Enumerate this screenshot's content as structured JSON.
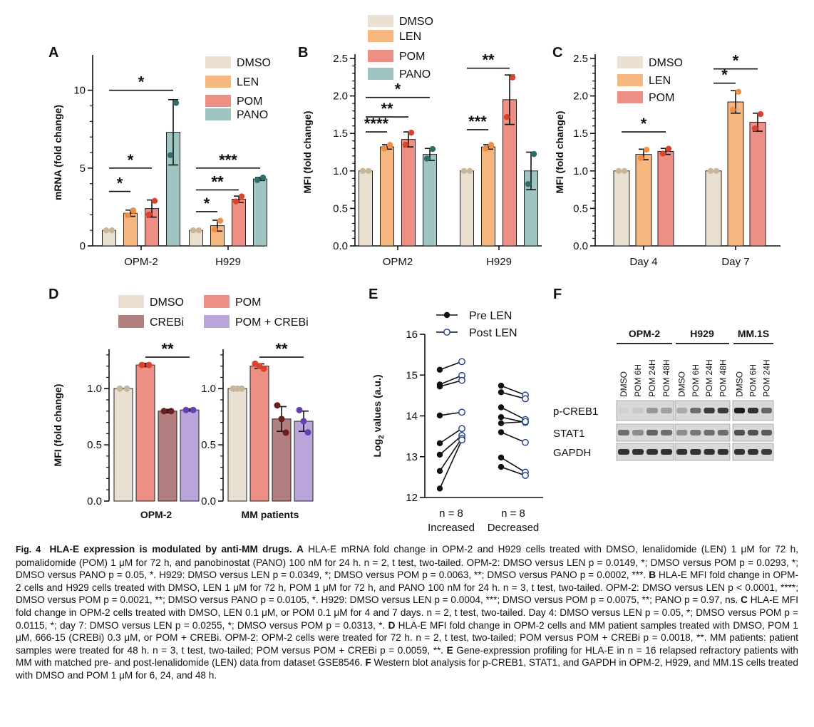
{
  "colors": {
    "DMSO": "#e9e0d2",
    "LEN": "#f5b680",
    "POM": "#ed8f85",
    "PANO": "#9fc5c3",
    "CREBi": "#b17f80",
    "POM + CREBi": "#b9a5d9",
    "dot_DMSO": "#c8b59a",
    "dot_LEN": "#ee8f47",
    "dot_POM": "#d9432e",
    "dot_PANO": "#2f6d6a",
    "dot_CREBi": "#6b1e20",
    "dot_POM + CREBi": "#6340b0",
    "series_dot": "#111111"
  },
  "panel_labels": {
    "A": "A",
    "B": "B",
    "C": "C",
    "D": "D",
    "E": "E",
    "F": "F"
  },
  "chart_data": [
    {
      "id": "A",
      "type": "bar",
      "ylabel": "mRNA (fold change)",
      "ylim": [
        0,
        12
      ],
      "yticks": [
        0,
        5,
        10
      ],
      "categories": [
        "OPM-2",
        "H929"
      ],
      "legend": [
        "DMSO",
        "LEN",
        "POM",
        "PANO"
      ],
      "series": [
        {
          "name": "DMSO",
          "values": [
            1.0,
            1.0
          ],
          "err": [
            0,
            0
          ]
        },
        {
          "name": "LEN",
          "values": [
            2.1,
            1.3
          ],
          "err": [
            0.2,
            0.35
          ]
        },
        {
          "name": "POM",
          "values": [
            2.4,
            3.0
          ],
          "err": [
            0.55,
            0.2
          ]
        },
        {
          "name": "PANO",
          "values": [
            7.3,
            4.3
          ],
          "err": [
            2.1,
            0.1
          ]
        }
      ],
      "significance": [
        {
          "group": 0,
          "from": 0,
          "to": 1,
          "label": "*",
          "y": 3.5
        },
        {
          "group": 0,
          "from": 0,
          "to": 2,
          "label": "*",
          "y": 5.0
        },
        {
          "group": 0,
          "from": 0,
          "to": 3,
          "label": "*",
          "y": 10.0
        },
        {
          "group": 1,
          "from": 0,
          "to": 1,
          "label": "*",
          "y": 2.2
        },
        {
          "group": 1,
          "from": 0,
          "to": 2,
          "label": "**",
          "y": 3.6
        },
        {
          "group": 1,
          "from": 0,
          "to": 3,
          "label": "***",
          "y": 5.0
        }
      ]
    },
    {
      "id": "B",
      "type": "bar",
      "ylabel": "MFI (fold change)",
      "ylim": [
        0,
        2.5
      ],
      "yticks": [
        "0.0",
        "0.5",
        "1.0",
        "1.5",
        "2.0",
        "2.5"
      ],
      "categories": [
        "OPM2",
        "H929"
      ],
      "legend": [
        "DMSO",
        "LEN",
        "POM",
        "PANO"
      ],
      "series": [
        {
          "name": "DMSO",
          "values": [
            1.0,
            1.0
          ],
          "err": [
            0,
            0
          ]
        },
        {
          "name": "LEN",
          "values": [
            1.32,
            1.32
          ],
          "err": [
            0.03,
            0.03
          ]
        },
        {
          "name": "POM",
          "values": [
            1.42,
            1.95
          ],
          "err": [
            0.1,
            0.33
          ]
        },
        {
          "name": "PANO",
          "values": [
            1.22,
            1.0
          ],
          "err": [
            0.08,
            0.25
          ]
        }
      ],
      "significance": [
        {
          "group": 0,
          "from": 0,
          "to": 1,
          "label": "****",
          "y": 1.52
        },
        {
          "group": 0,
          "from": 0,
          "to": 2,
          "label": "**",
          "y": 1.72
        },
        {
          "group": 0,
          "from": 0,
          "to": 3,
          "label": "*",
          "y": 1.98
        },
        {
          "group": 1,
          "from": 0,
          "to": 1,
          "label": "***",
          "y": 1.55
        },
        {
          "group": 1,
          "from": 0,
          "to": 2,
          "label": "**",
          "y": 2.37
        }
      ]
    },
    {
      "id": "C",
      "type": "bar",
      "ylabel": "MFI (fold change)",
      "ylim": [
        0,
        2.5
      ],
      "yticks": [
        "0.0",
        "0.5",
        "1.0",
        "1.5",
        "2.0",
        "2.5"
      ],
      "categories": [
        "Day 4",
        "Day 7"
      ],
      "legend": [
        "DMSO",
        "LEN",
        "POM"
      ],
      "series": [
        {
          "name": "DMSO",
          "values": [
            1.0,
            1.0
          ],
          "err": [
            0,
            0
          ]
        },
        {
          "name": "LEN",
          "values": [
            1.22,
            1.92
          ],
          "err": [
            0.07,
            0.15
          ]
        },
        {
          "name": "POM",
          "values": [
            1.26,
            1.65
          ],
          "err": [
            0.04,
            0.12
          ]
        }
      ],
      "significance": [
        {
          "group": 0,
          "from": 0,
          "to": 2,
          "label": "*",
          "y": 1.52
        },
        {
          "group": 1,
          "from": 0,
          "to": 1,
          "label": "*",
          "y": 2.17
        },
        {
          "group": 1,
          "from": 0,
          "to": 2,
          "label": "*",
          "y": 2.36
        }
      ]
    },
    {
      "id": "D",
      "type": "bar",
      "ylabel": "MFI (fold change)",
      "ylim": [
        0,
        1.35
      ],
      "yticks": [
        "0.0",
        "0.5",
        "1.0"
      ],
      "categories": [
        "OPM-2",
        "MM patients"
      ],
      "legend": [
        "DMSO",
        "CREBi",
        "POM",
        "POM + CREBi"
      ],
      "series_order": [
        "DMSO",
        "POM",
        "CREBi",
        "POM + CREBi"
      ],
      "series": [
        {
          "name": "DMSO",
          "values": [
            1.0,
            1.0
          ],
          "err": [
            0,
            0
          ]
        },
        {
          "name": "POM",
          "values": [
            1.21,
            1.2
          ],
          "err": [
            0.015,
            0.02
          ]
        },
        {
          "name": "CREBi",
          "values": [
            0.8,
            0.73
          ],
          "err": [
            0.015,
            0.11
          ]
        },
        {
          "name": "POM + CREBi",
          "values": [
            0.81,
            0.71
          ],
          "err": [
            0.01,
            0.09
          ]
        }
      ],
      "significance": [
        {
          "group": 0,
          "from": 1,
          "to": 3,
          "label": "**",
          "y": 1.28
        },
        {
          "group": 1,
          "from": 1,
          "to": 3,
          "label": "**",
          "y": 1.28
        }
      ]
    },
    {
      "id": "E",
      "type": "scatter",
      "ylabel": "Log2 values (a.u.)",
      "ylim": [
        12,
        16
      ],
      "yticks": [
        12,
        13,
        14,
        15,
        16
      ],
      "categories": [
        "n = 8\nIncreased",
        "n = 8\nDecreased"
      ],
      "legend": [
        "Pre LEN",
        "Post LEN"
      ],
      "increased": {
        "pre": [
          15.13,
          14.77,
          14.72,
          14.01,
          13.33,
          13.05,
          12.65,
          12.22
        ],
        "post": [
          15.33,
          14.99,
          14.87,
          14.09,
          13.69,
          13.52,
          13.45,
          13.41
        ]
      },
      "decreased": {
        "pre": [
          14.74,
          14.58,
          14.21,
          13.97,
          13.82,
          13.6,
          12.98,
          12.75
        ],
        "post": [
          14.51,
          14.42,
          13.91,
          13.84,
          13.86,
          13.35,
          12.62,
          12.54
        ]
      }
    }
  ],
  "panelE_text": {
    "ylabel_main": "Log",
    "ylabel_sub": "2",
    "ylabel_rest": " values (a.u.)",
    "cat1_line1": "n = 8",
    "cat1_line2": "Increased",
    "cat2_line1": "n = 8",
    "cat2_line2": "Decreased"
  },
  "blot": {
    "groups": [
      "OPM-2",
      "H929",
      "MM.1S"
    ],
    "lanes": [
      [
        "DMSO",
        "POM 6H",
        "POM 24H",
        "POM 48H"
      ],
      [
        "DMSO",
        "POM 6H",
        "POM 24H",
        "POM 48H"
      ],
      [
        "DMSO",
        "POM 6H",
        "POM 24H"
      ]
    ],
    "rows": [
      "p-CREB1",
      "STAT1",
      "GAPDH"
    ],
    "intensity": {
      "p-CREB1": [
        [
          0.05,
          0.1,
          0.35,
          0.3
        ],
        [
          0.25,
          0.55,
          0.8,
          0.8
        ],
        [
          0.95,
          0.85,
          0.6
        ]
      ],
      "STAT1": [
        [
          0.55,
          0.4,
          0.6,
          0.55
        ],
        [
          0.4,
          0.5,
          0.55,
          0.55
        ],
        [
          0.7,
          0.7,
          0.65
        ]
      ],
      "GAPDH": [
        [
          0.85,
          0.85,
          0.85,
          0.85
        ],
        [
          0.85,
          0.85,
          0.85,
          0.85
        ],
        [
          0.85,
          0.85,
          0.8
        ]
      ]
    }
  },
  "caption": {
    "fig_label": "Fig. 4",
    "title": "HLA-E expression is modulated by anti-MM drugs.",
    "A_label": "A",
    "A_text": " HLA-E mRNA fold change in OPM-2 and H929 cells treated with DMSO, lenalidomide (LEN) 1 μM for 72 h, pomalidomide (POM) 1 μM for 72 h, and panobinostat (PANO) 100 nM for 24 h. n = 2, t test, two-tailed. OPM-2: DMSO versus LEN p = 0.0149, *; DMSO versus POM p = 0.0293, *; DMSO versus PANO p = 0.05, *. H929: DMSO versus LEN p = 0.0349, *; DMSO versus POM p = 0.0063, **; DMSO versus PANO p = 0.0002, ***. ",
    "B_label": "B",
    "B_text": " HLA-E MFI fold change in OPM-2 cells and H929 cells treated with DMSO, LEN 1 μM for 72 h, POM 1 μM for 72 h, and PANO 100 nM for 24 h. n = 3, t test, two-tailed. OPM-2: DMSO versus LEN p < 0.0001, ****; DMSO versus POM p = 0.0021, **; DMSO versus PANO p = 0.0105, *. H929: DMSO versus LEN p = 0.0004, ***; DMSO versus POM p = 0.0075, **; PANO p = 0.97, ns. ",
    "C_label": "C",
    "C_text": " HLA-E MFI fold change in OPM-2 cells treated with DMSO, LEN 0.1 μM, or POM 0.1 μM for 4 and 7 days. n = 2, t test, two-tailed. Day 4: DMSO versus LEN p = 0.05, *; DMSO versus POM p = 0.0115, *; day 7: DMSO versus LEN p = 0.0255, *; DMSO versus POM p = 0.0313, *. ",
    "D_label": "D",
    "D_text": " HLA-E MFI fold change in OPM-2 cells and MM patient samples treated with DMSO, POM 1 μM, 666-15 (CREBi) 0.3 μM, or POM + CREBi. OPM-2: OPM-2 cells were treated for 72 h. n = 2, t test, two-tailed; POM versus POM + CREBi p = 0.0018, **. MM patients: patient samples were treated for 48 h. n = 3, t test, two-tailed; POM versus POM + CREBi p = 0.0059, **. ",
    "E_label": "E",
    "E_text": " Gene-expression profiling for HLA-E in n = 16 relapsed refractory patients with MM with matched pre- and post-lenalidomide (LEN) data from dataset GSE8546. ",
    "F_label": "F",
    "F_text": " Western blot analysis for p-CREB1, STAT1, and GAPDH in OPM-2, H929, and MM.1S cells treated with DMSO and POM 1 μM for 6, 24, and 48 h."
  }
}
